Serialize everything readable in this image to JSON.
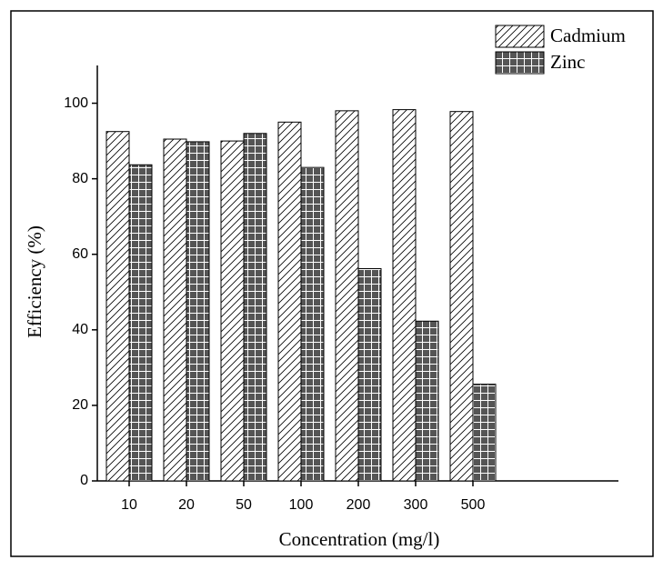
{
  "chart_data": {
    "type": "bar",
    "x_label": "Concentration (mg/l)",
    "y_label": "Efficiency (%)",
    "categories": [
      "10",
      "20",
      "50",
      "100",
      "200",
      "300",
      "500"
    ],
    "series": [
      {
        "name": "Cadmium",
        "color": "#ffffff",
        "hatch": "diagonal",
        "values": [
          92.5,
          90.5,
          90,
          95,
          98,
          98.3,
          97.8
        ]
      },
      {
        "name": "Zinc",
        "color": "#555555",
        "hatch": "grid",
        "values": [
          83.7,
          89.8,
          92,
          83,
          56.2,
          42.3,
          25.6
        ]
      }
    ],
    "ylim": [
      0,
      110
    ],
    "yticks": [
      0,
      20,
      40,
      60,
      80,
      100
    ],
    "legend": "upper right"
  }
}
